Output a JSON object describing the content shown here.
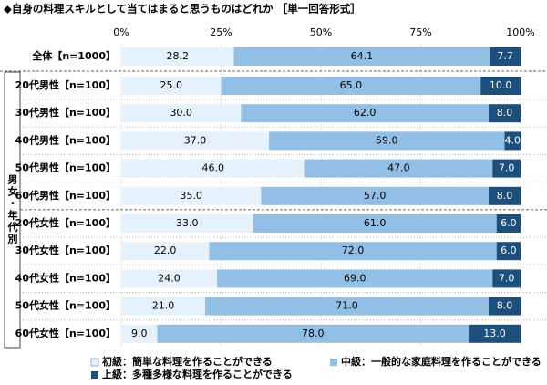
{
  "chart_data": {
    "type": "stacked-bar-horizontal",
    "title": "◆自身の料理スキルとして当てはまると思うものはどれか ［単一回答形式］",
    "group_label": "男女・年代別",
    "categories": [
      "全体【n=1000】",
      "20代男性【n=100】",
      "30代男性【n=100】",
      "40代男性【n=100】",
      "50代男性【n=100】",
      "60代男性【n=100】",
      "20代女性【n=100】",
      "30代女性【n=100】",
      "40代女性【n=100】",
      "50代女性【n=100】",
      "60代女性【n=100】"
    ],
    "series": [
      {
        "name": "初級：簡単な料理を作ることができる",
        "color": "#e6f2fb",
        "values": [
          28.2,
          25,
          30,
          37,
          46,
          35,
          33,
          22,
          24,
          21,
          9
        ],
        "value_labels": [
          "28.2",
          "25.0",
          "30.0",
          "37.0",
          "46.0",
          "35.0",
          "33.0",
          "22.0",
          "24.0",
          "21.0",
          "9.0"
        ]
      },
      {
        "name": "中級：一般的な家庭料理を作ることができる",
        "color": "#92bfe6",
        "values": [
          64.1,
          65,
          62,
          59,
          47,
          57,
          61,
          72,
          69,
          71,
          78
        ],
        "value_labels": [
          "64.1",
          "65.0",
          "62.0",
          "59.0",
          "47.0",
          "57.0",
          "61.0",
          "72.0",
          "69.0",
          "71.0",
          "78.0"
        ]
      },
      {
        "name": "上級：多種多様な料理を作ることができる",
        "color": "#1d4f7c",
        "values": [
          7.7,
          10,
          8,
          4,
          7,
          8,
          6,
          6,
          7,
          8,
          13
        ],
        "value_labels": [
          "7.7",
          "10.0",
          "8.0",
          "4.0",
          "7.0",
          "8.0",
          "6.0",
          "6.0",
          "7.0",
          "8.0",
          "13.0"
        ]
      }
    ],
    "xlim": [
      0,
      100
    ],
    "xticks": [
      {
        "value": 0,
        "label": "0%"
      },
      {
        "value": 25,
        "label": "25%"
      },
      {
        "value": 50,
        "label": "50%"
      },
      {
        "value": 75,
        "label": "75%"
      },
      {
        "value": 100,
        "label": "100%"
      }
    ],
    "legend": "bottom"
  }
}
